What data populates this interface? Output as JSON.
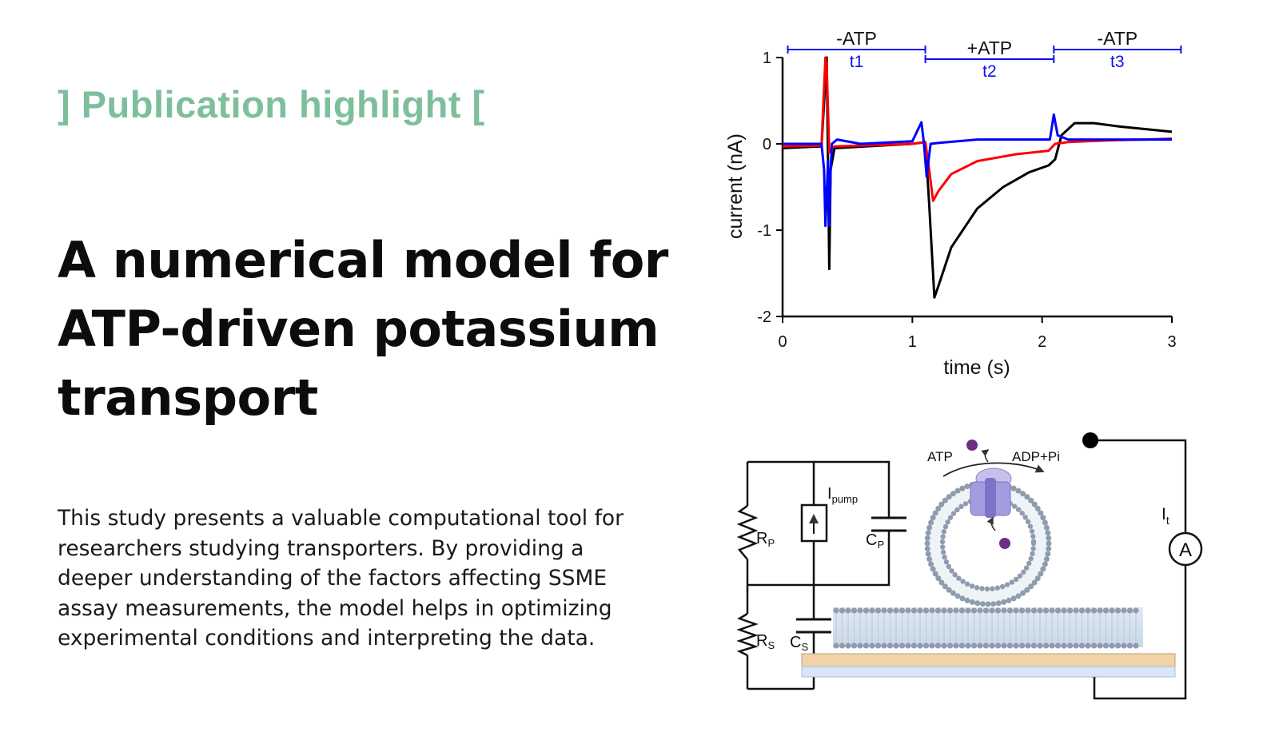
{
  "header": {
    "kicker": "] Publication highlight ["
  },
  "article": {
    "title_lines": [
      "A numerical model for",
      "ATP-driven potassium",
      "transport"
    ],
    "summary": "This study presents a valuable computational tool for researchers studying transporters. By providing a deeper understanding of the factors affecting SSME assay measurements, the model helps in optimizing experimental conditions and interpreting the data."
  },
  "chart_data": {
    "type": "line",
    "xlabel": "time (s)",
    "ylabel": "current (nA)",
    "xlim": [
      0,
      3
    ],
    "ylim": [
      -2,
      1
    ],
    "xticks": [
      "0",
      "1",
      "2",
      "3"
    ],
    "yticks": [
      "-2",
      "-1",
      "0",
      "1"
    ],
    "annotations": [
      {
        "label": "-ATP",
        "sublabel": "t1",
        "x_range": [
          0.04,
          1.1
        ]
      },
      {
        "label": "+ATP",
        "sublabel": "t2",
        "x_range": [
          1.1,
          2.09
        ]
      },
      {
        "label": "-ATP",
        "sublabel": "t3",
        "x_range": [
          2.09,
          3.07
        ]
      }
    ],
    "series": [
      {
        "color": "#000000",
        "x": [
          0,
          0.3,
          0.34,
          0.35,
          0.36,
          0.37,
          0.4,
          1.0,
          1.1,
          1.13,
          1.17,
          1.2,
          1.3,
          1.5,
          1.7,
          1.9,
          2.05,
          2.1,
          2.15,
          2.25,
          2.4,
          2.6,
          2.8,
          3.0
        ],
        "y": [
          -0.05,
          -0.03,
          1.0,
          -0.2,
          -1.45,
          -0.3,
          -0.05,
          0.0,
          0.02,
          -0.7,
          -1.78,
          -1.65,
          -1.2,
          -0.75,
          -0.5,
          -0.33,
          -0.25,
          -0.18,
          0.1,
          0.24,
          0.24,
          0.2,
          0.17,
          0.14
        ]
      },
      {
        "color": "#ff0000",
        "x": [
          0,
          0.3,
          0.33,
          0.34,
          0.36,
          0.38,
          0.4,
          1.0,
          1.1,
          1.13,
          1.16,
          1.2,
          1.3,
          1.5,
          1.8,
          2.05,
          2.1,
          2.2,
          2.5,
          2.8,
          3.0
        ],
        "y": [
          -0.03,
          -0.02,
          1.0,
          0.9,
          -0.1,
          -0.05,
          -0.03,
          0.0,
          0.02,
          -0.3,
          -0.66,
          -0.55,
          -0.35,
          -0.2,
          -0.12,
          -0.08,
          0.0,
          0.02,
          0.04,
          0.05,
          0.06
        ]
      },
      {
        "color": "#0000ff",
        "x": [
          0,
          0.3,
          0.32,
          0.33,
          0.35,
          0.36,
          0.37,
          0.38,
          0.42,
          0.6,
          1.0,
          1.07,
          1.09,
          1.11,
          1.14,
          1.2,
          1.5,
          2.0,
          2.06,
          2.09,
          2.12,
          2.2,
          2.5,
          3.0
        ],
        "y": [
          0.0,
          0.0,
          -0.3,
          -0.95,
          -0.2,
          -0.95,
          -0.3,
          0.0,
          0.05,
          0.0,
          0.03,
          0.25,
          0.0,
          -0.38,
          0.0,
          0.01,
          0.05,
          0.05,
          0.05,
          0.34,
          0.1,
          0.05,
          0.05,
          0.05
        ]
      }
    ]
  },
  "diagram": {
    "labels": {
      "rp": "R",
      "rp_sub": "P",
      "rs": "R",
      "rs_sub": "S",
      "cp": "C",
      "cp_sub": "P",
      "cs": "C",
      "cs_sub": "S",
      "ipump": "I",
      "ipump_sub": "pump",
      "it": "I",
      "it_sub": "t",
      "ammeter": "A",
      "atp": "ATP",
      "adp": "ADP+Pi"
    }
  }
}
